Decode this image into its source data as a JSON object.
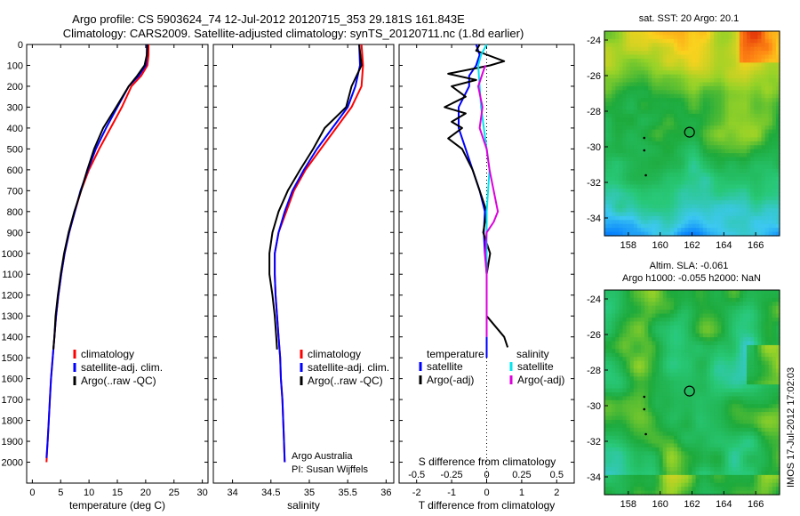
{
  "header": {
    "line1": "Argo profile: CS 5903624_74 12-Jul-2012 20120715_353 29.181S 161.843E",
    "line2": "Climatology: CARS2009. Satellite-adjusted climatology: synTS_20120711.nc (1.8d earlier)"
  },
  "colors": {
    "climatology": "#ff0000",
    "satellite": "#0000ff",
    "argo": "#000000",
    "sal_satellite": "#00e5ee",
    "sal_argo": "#dd00dd"
  },
  "chart_data": [
    {
      "type": "line",
      "id": "temperature",
      "xlabel": "temperature (deg C)",
      "ylabel": "",
      "xlim": [
        -1,
        31
      ],
      "ylim": [
        0,
        2100
      ],
      "y_reversed": true,
      "xticks": [
        "0",
        "5",
        "10",
        "15",
        "20",
        "25",
        "30"
      ],
      "yticks": [
        "0",
        "100",
        "200",
        "300",
        "400",
        "500",
        "600",
        "700",
        "800",
        "900",
        "1000",
        "1100",
        "1200",
        "1300",
        "1400",
        "1500",
        "1600",
        "1700",
        "1800",
        "1900",
        "2000"
      ],
      "legend": [
        "climatology",
        "satellite-adj. clim.",
        "Argo(..raw -QC)"
      ],
      "series": [
        {
          "name": "climatology",
          "color": "red",
          "points": [
            [
              20.5,
              0
            ],
            [
              20.5,
              50
            ],
            [
              20.3,
              100
            ],
            [
              19.2,
              150
            ],
            [
              17.5,
              200
            ],
            [
              15.8,
              300
            ],
            [
              13.8,
              400
            ],
            [
              11.8,
              500
            ],
            [
              10.0,
              600
            ],
            [
              8.6,
              700
            ],
            [
              7.5,
              800
            ],
            [
              6.5,
              900
            ],
            [
              5.7,
              1000
            ],
            [
              5.1,
              1100
            ],
            [
              4.6,
              1200
            ],
            [
              4.2,
              1300
            ],
            [
              3.9,
              1400
            ],
            [
              3.6,
              1500
            ],
            [
              3.3,
              1600
            ],
            [
              3.1,
              1700
            ],
            [
              2.9,
              1800
            ],
            [
              2.7,
              1900
            ],
            [
              2.5,
              2000
            ]
          ]
        },
        {
          "name": "satellite-adj. clim.",
          "color": "blue",
          "points": [
            [
              20.2,
              0
            ],
            [
              20.2,
              50
            ],
            [
              20.0,
              100
            ],
            [
              18.8,
              150
            ],
            [
              17.0,
              200
            ],
            [
              15.0,
              300
            ],
            [
              13.0,
              400
            ],
            [
              11.2,
              500
            ],
            [
              9.8,
              600
            ],
            [
              8.5,
              700
            ],
            [
              7.5,
              800
            ],
            [
              6.5,
              900
            ],
            [
              5.7,
              1000
            ],
            [
              5.1,
              1100
            ],
            [
              4.6,
              1200
            ],
            [
              4.2,
              1300
            ],
            [
              3.9,
              1400
            ],
            [
              3.6,
              1500
            ],
            [
              3.3,
              1600
            ],
            [
              3.1,
              1700
            ],
            [
              2.9,
              1800
            ],
            [
              2.7,
              1900
            ],
            [
              2.5,
              1980
            ]
          ]
        },
        {
          "name": "Argo(..raw -QC)",
          "color": "black",
          "points": [
            [
              20.3,
              0
            ],
            [
              20.2,
              50
            ],
            [
              19.8,
              100
            ],
            [
              18.5,
              150
            ],
            [
              17.0,
              200
            ],
            [
              14.8,
              300
            ],
            [
              12.5,
              400
            ],
            [
              10.9,
              500
            ],
            [
              9.7,
              600
            ],
            [
              8.6,
              700
            ],
            [
              7.4,
              800
            ],
            [
              6.4,
              900
            ],
            [
              5.6,
              1000
            ],
            [
              5.0,
              1100
            ],
            [
              4.5,
              1200
            ],
            [
              4.1,
              1300
            ],
            [
              3.9,
              1400
            ],
            [
              3.7,
              1460
            ]
          ]
        }
      ]
    },
    {
      "type": "line",
      "id": "salinity",
      "xlabel": "salinity",
      "xlim": [
        33.75,
        36.1
      ],
      "ylim": [
        0,
        2100
      ],
      "y_reversed": true,
      "xticks": [
        "34",
        "34.5",
        "35",
        "35.5",
        "36"
      ],
      "legend": [
        "climatology",
        "satellite-adj. clim.",
        "Argo(..raw -QC)"
      ],
      "annotation": [
        "Argo Australia",
        "PI: Susan Wijffels"
      ],
      "series": [
        {
          "name": "climatology",
          "color": "red",
          "points": [
            [
              35.68,
              0
            ],
            [
              35.7,
              100
            ],
            [
              35.68,
              200
            ],
            [
              35.55,
              300
            ],
            [
              35.35,
              400
            ],
            [
              35.15,
              500
            ],
            [
              34.95,
              600
            ],
            [
              34.8,
              700
            ],
            [
              34.7,
              800
            ],
            [
              34.6,
              900
            ],
            [
              34.55,
              1000
            ],
            [
              34.55,
              1100
            ],
            [
              34.56,
              1200
            ],
            [
              34.58,
              1300
            ],
            [
              34.6,
              1400
            ],
            [
              34.62,
              1500
            ],
            [
              34.63,
              1600
            ],
            [
              34.65,
              1700
            ],
            [
              34.66,
              1800
            ],
            [
              34.67,
              1900
            ],
            [
              34.68,
              2000
            ]
          ]
        },
        {
          "name": "satellite-adj. clim.",
          "color": "blue",
          "points": [
            [
              35.65,
              0
            ],
            [
              35.66,
              100
            ],
            [
              35.6,
              200
            ],
            [
              35.5,
              300
            ],
            [
              35.3,
              400
            ],
            [
              35.1,
              500
            ],
            [
              34.93,
              600
            ],
            [
              34.78,
              700
            ],
            [
              34.68,
              800
            ],
            [
              34.6,
              900
            ],
            [
              34.55,
              1000
            ],
            [
              34.55,
              1100
            ],
            [
              34.56,
              1200
            ],
            [
              34.58,
              1300
            ],
            [
              34.6,
              1400
            ],
            [
              34.62,
              1500
            ],
            [
              34.63,
              1600
            ],
            [
              34.65,
              1700
            ],
            [
              34.66,
              1800
            ],
            [
              34.67,
              1900
            ],
            [
              34.68,
              2000
            ]
          ]
        },
        {
          "name": "Argo(..raw -QC)",
          "color": "black",
          "points": [
            [
              35.65,
              0
            ],
            [
              35.68,
              100
            ],
            [
              35.55,
              200
            ],
            [
              35.48,
              300
            ],
            [
              35.2,
              400
            ],
            [
              35.05,
              500
            ],
            [
              34.88,
              600
            ],
            [
              34.72,
              700
            ],
            [
              34.6,
              800
            ],
            [
              34.52,
              900
            ],
            [
              34.48,
              1000
            ],
            [
              34.48,
              1100
            ],
            [
              34.52,
              1200
            ],
            [
              34.55,
              1300
            ],
            [
              34.57,
              1400
            ],
            [
              34.58,
              1460
            ]
          ]
        }
      ]
    },
    {
      "type": "line",
      "id": "differences",
      "xlabel": "T difference from climatology",
      "xlabel2": "S difference from climatology",
      "xlim": [
        -2.5,
        2.5
      ],
      "ylim": [
        0,
        2100
      ],
      "y_reversed": true,
      "xticks": [
        "-2",
        "-1",
        "0",
        "1",
        "2"
      ],
      "xticks_salinity": [
        "-0.5",
        "-0.25",
        "0",
        "0.25",
        "0.5"
      ],
      "legend_temperature_title": "temperature",
      "legend_salinity_title": "salinity",
      "legend_temperature": [
        "satellite",
        "Argo(-adj)"
      ],
      "legend_salinity": [
        "satellite",
        "Argo(-adj)"
      ],
      "series": [
        {
          "name": "temperature satellite",
          "color": "blue",
          "points": [
            [
              -0.3,
              0
            ],
            [
              -0.2,
              50
            ],
            [
              -0.3,
              100
            ],
            [
              -0.5,
              150
            ],
            [
              -0.5,
              200
            ],
            [
              -0.8,
              300
            ],
            [
              -0.8,
              400
            ],
            [
              -0.6,
              500
            ],
            [
              -0.4,
              600
            ],
            [
              -0.2,
              700
            ],
            [
              -0.05,
              800
            ],
            [
              -0.08,
              900
            ],
            [
              -0.05,
              1000
            ],
            [
              0,
              1100
            ],
            [
              0,
              1200
            ],
            [
              0,
              1300
            ],
            [
              0,
              1400
            ],
            [
              0,
              1500
            ]
          ]
        },
        {
          "name": "temperature Argo(-adj)",
          "color": "black",
          "points": [
            [
              -0.2,
              0
            ],
            [
              -0.3,
              30
            ],
            [
              0.5,
              80
            ],
            [
              0.1,
              100
            ],
            [
              -1.1,
              140
            ],
            [
              -0.3,
              170
            ],
            [
              -1.0,
              200
            ],
            [
              -0.6,
              250
            ],
            [
              -1.2,
              300
            ],
            [
              -0.6,
              330
            ],
            [
              -1.0,
              370
            ],
            [
              -0.7,
              400
            ],
            [
              -1.1,
              450
            ],
            [
              -0.7,
              500
            ],
            [
              -0.4,
              600
            ],
            [
              -0.2,
              700
            ],
            [
              0,
              800
            ],
            [
              -0.1,
              900
            ],
            [
              0.1,
              1000
            ],
            [
              0,
              1100
            ],
            [
              0,
              1200
            ],
            [
              0,
              1300
            ],
            [
              0.5,
              1400
            ],
            [
              0.6,
              1450
            ]
          ]
        },
        {
          "name": "salinity satellite",
          "color": "cyan",
          "points": [
            [
              0,
              0
            ],
            [
              -0.04,
              50
            ],
            [
              -0.06,
              100
            ],
            [
              -0.05,
              200
            ],
            [
              -0.04,
              300
            ],
            [
              -0.02,
              400
            ],
            [
              0,
              500
            ],
            [
              0.02,
              600
            ],
            [
              0.01,
              700
            ],
            [
              0,
              800
            ],
            [
              0,
              900
            ],
            [
              0,
              1000
            ],
            [
              0,
              1100
            ],
            [
              0,
              1200
            ],
            [
              0,
              1300
            ],
            [
              0,
              1400
            ]
          ]
        },
        {
          "name": "salinity Argo(-adj)",
          "color": "magenta",
          "points": [
            [
              -0.01,
              100
            ],
            [
              -0.06,
              200
            ],
            [
              -0.03,
              300
            ],
            [
              -0.05,
              400
            ],
            [
              0,
              500
            ],
            [
              0.02,
              600
            ],
            [
              0.05,
              700
            ],
            [
              0.08,
              800
            ],
            [
              0.05,
              850
            ],
            [
              0,
              900
            ],
            [
              -0.01,
              1000
            ],
            [
              0,
              1100
            ],
            [
              0,
              1200
            ],
            [
              0,
              1300
            ],
            [
              0,
              1400
            ]
          ]
        }
      ]
    },
    {
      "type": "heatmap",
      "id": "sst-map",
      "title": "sat. SST: 20 Argo: 20.1",
      "xlim": [
        156.5,
        167.5
      ],
      "ylim": [
        -35,
        -23.5
      ],
      "xticks": [
        "158",
        "160",
        "162",
        "164",
        "166"
      ],
      "yticks": [
        "-24",
        "-26",
        "-28",
        "-30",
        "-32",
        "-34"
      ],
      "float_position": [
        161.843,
        -29.181
      ]
    },
    {
      "type": "heatmap",
      "id": "sla-map",
      "title_line1": "Altim. SLA: -0.061",
      "title_line2": "Argo h1000: -0.055 h2000: NaN",
      "xlim": [
        156.5,
        167.5
      ],
      "ylim": [
        -35,
        -23.5
      ],
      "xticks": [
        "158",
        "160",
        "162",
        "164",
        "166"
      ],
      "yticks": [
        "-24",
        "-26",
        "-28",
        "-30",
        "-32",
        "-34"
      ],
      "float_position": [
        161.843,
        -29.181
      ]
    }
  ],
  "footer": {
    "stamp": "IMOS 17-Jul-2012 17:02:03"
  }
}
